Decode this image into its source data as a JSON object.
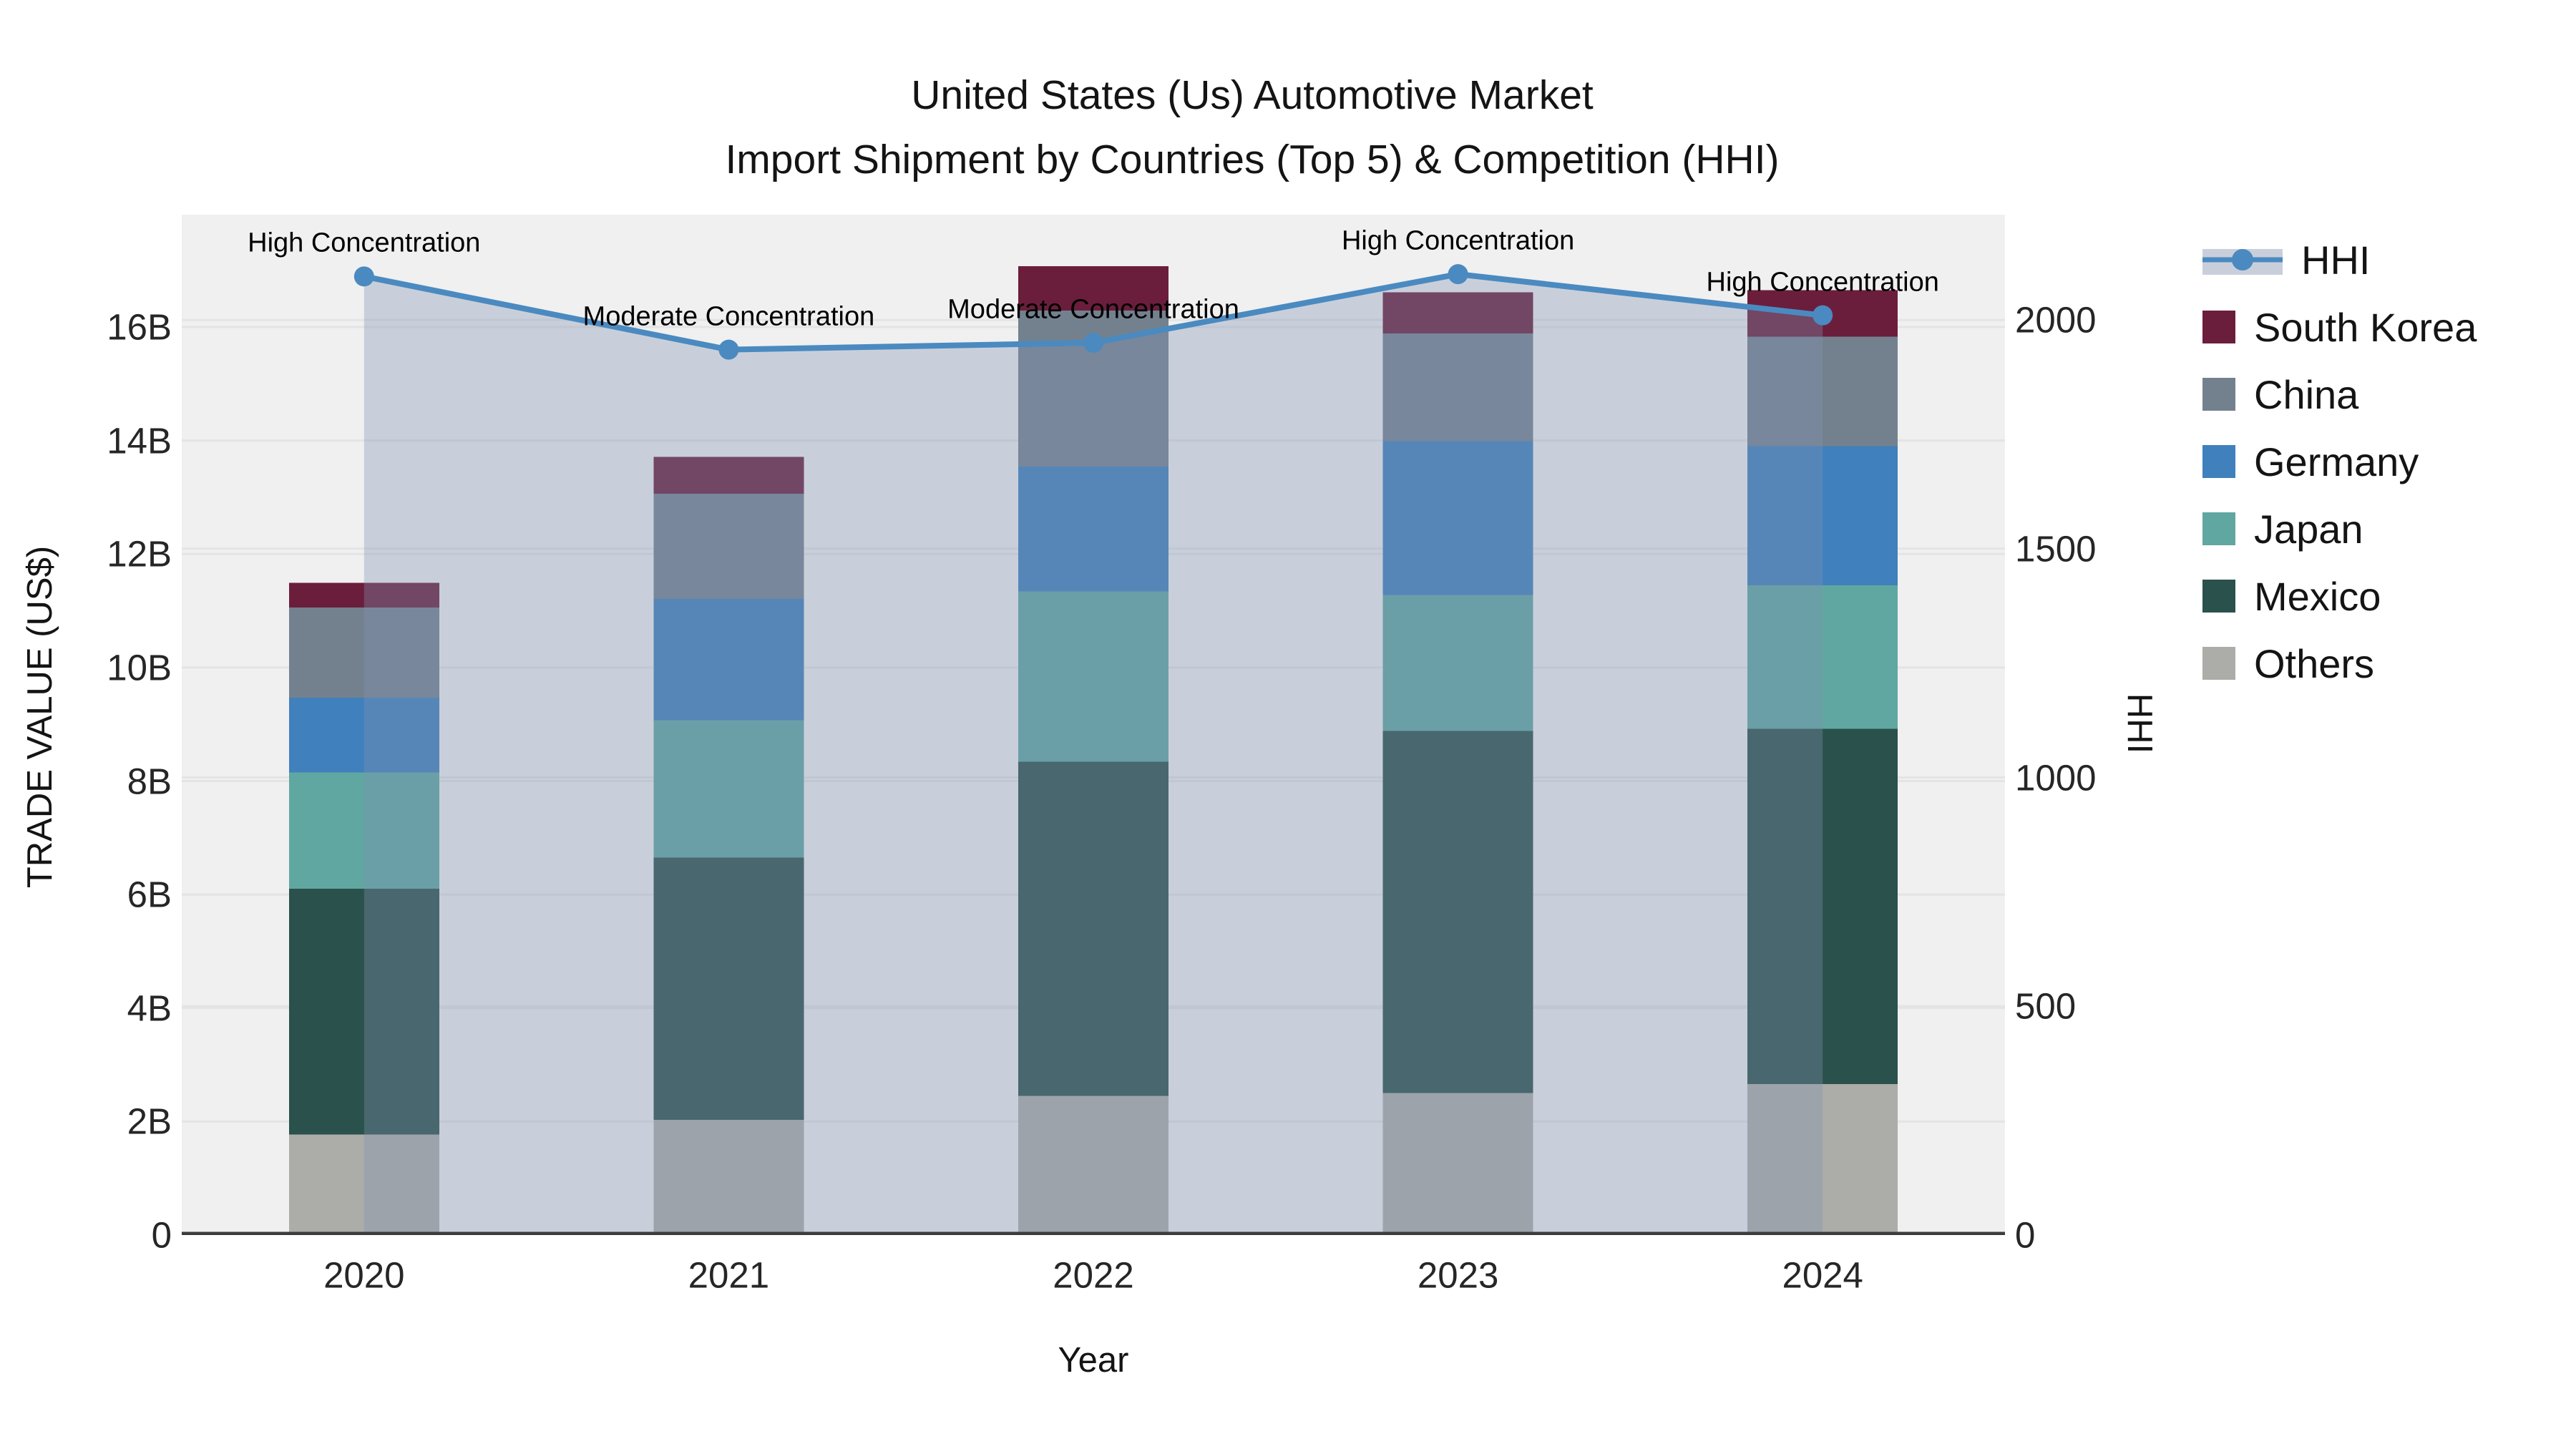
{
  "figure": {
    "title_line1": "United States (Us) Automotive Market",
    "title_line2": "Import Shipment by Countries (Top 5) & Competition (HHI)"
  },
  "x_axis": {
    "title": "Year",
    "categories": [
      "2020",
      "2021",
      "2022",
      "2023",
      "2024"
    ]
  },
  "y_left": {
    "title": "TRADE VALUE (US$)",
    "ticks": [
      {
        "label": "0",
        "value": 0
      },
      {
        "label": "2B",
        "value": 2
      },
      {
        "label": "4B",
        "value": 4
      },
      {
        "label": "6B",
        "value": 6
      },
      {
        "label": "8B",
        "value": 8
      },
      {
        "label": "10B",
        "value": 10
      },
      {
        "label": "12B",
        "value": 12
      },
      {
        "label": "14B",
        "value": 14
      },
      {
        "label": "16B",
        "value": 16
      }
    ]
  },
  "y_right": {
    "title": "HHI",
    "ticks": [
      {
        "label": "0",
        "value": 0
      },
      {
        "label": "500",
        "value": 500
      },
      {
        "label": "1000",
        "value": 1000
      },
      {
        "label": "1500",
        "value": 1500
      },
      {
        "label": "2000",
        "value": 2000
      }
    ]
  },
  "legend": {
    "items": [
      {
        "label": "HHI",
        "type": "line",
        "color": "#4A8AC0"
      },
      {
        "label": "South Korea",
        "type": "square",
        "color": "#6B1E3C"
      },
      {
        "label": "China",
        "type": "square",
        "color": "#73818F"
      },
      {
        "label": "Germany",
        "type": "square",
        "color": "#4080BC"
      },
      {
        "label": "Japan",
        "type": "square",
        "color": "#60A7A1"
      },
      {
        "label": "Mexico",
        "type": "square",
        "color": "#2A514B"
      },
      {
        "label": "Others",
        "type": "square",
        "color": "#ACACA8"
      }
    ]
  },
  "annotations": [
    {
      "text": "High Concentration",
      "year_index": 0
    },
    {
      "text": "Moderate Concentration",
      "year_index": 1
    },
    {
      "text": "Moderate Concentration",
      "year_index": 2
    },
    {
      "text": "High Concentration",
      "year_index": 3
    },
    {
      "text": "High Concentration",
      "year_index": 4
    }
  ],
  "chart_data": {
    "type": "combo: stacked bar (left axis, trade value in billions US$) + line (right axis, HHI)",
    "categories": [
      "2020",
      "2021",
      "2022",
      "2023",
      "2024"
    ],
    "unit_bars": "billion US$",
    "series": [
      {
        "name": "Others",
        "values": [
          1.77,
          2.03,
          2.45,
          2.5,
          2.66
        ]
      },
      {
        "name": "Mexico",
        "values": [
          4.33,
          4.62,
          5.89,
          6.38,
          6.26
        ]
      },
      {
        "name": "Japan",
        "values": [
          2.05,
          2.42,
          3.0,
          2.4,
          2.53
        ]
      },
      {
        "name": "Germany",
        "values": [
          1.32,
          2.14,
          2.2,
          2.71,
          2.45
        ]
      },
      {
        "name": "China",
        "values": [
          1.59,
          1.85,
          2.75,
          1.9,
          1.93
        ]
      },
      {
        "name": "South Korea",
        "values": [
          0.43,
          0.65,
          0.78,
          0.72,
          0.82
        ]
      }
    ],
    "stack_totals": [
      11.49,
      13.71,
      17.07,
      16.61,
      16.65
    ],
    "hhi_line": {
      "name": "HHI",
      "values": [
        2095,
        1935,
        1950,
        2100,
        2010
      ],
      "fill": "tozero"
    },
    "title": "United States (Us) Automotive Market — Import Shipment by Countries (Top 5) & Competition (HHI)",
    "xlabel": "Year",
    "ylabel_left": "TRADE VALUE (US$)",
    "ylabel_right": "HHI",
    "ylim_left": [
      0,
      17.98
    ],
    "ylim_right": [
      0,
      2230
    ],
    "grid": true,
    "legend_position": "right"
  },
  "colors": {
    "South Korea": "#6B1E3C",
    "China": "#73818F",
    "Germany": "#4080BC",
    "Japan": "#60A7A1",
    "Mexico": "#2A514B",
    "Others": "#ACACA8",
    "hhi_line": "#4A8AC0",
    "band_fill": "rgba(129,146,177,0.35)",
    "legend_band": "#C9CFDA",
    "plot_bg": "#F0F0F0",
    "grid": "#E4E4E4",
    "axis_line": "#3C3C3C"
  }
}
